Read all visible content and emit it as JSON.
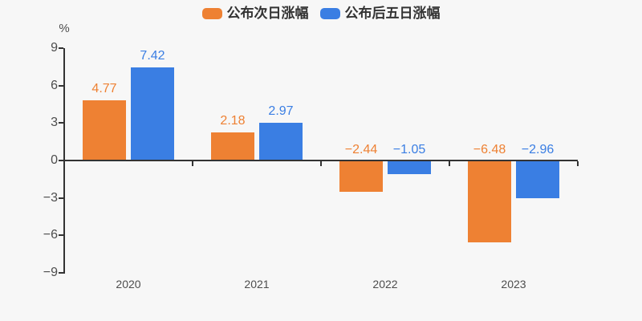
{
  "chart_data": {
    "type": "bar",
    "title": "",
    "xlabel": "",
    "ylabel": "%",
    "categories": [
      "2020",
      "2021",
      "2022",
      "2023"
    ],
    "series": [
      {
        "name": "公布次日涨幅",
        "color": "#ee8133",
        "values": [
          4.77,
          2.18,
          -2.44,
          -6.48
        ]
      },
      {
        "name": "公布后五日涨幅",
        "color": "#3a7ee3",
        "values": [
          7.42,
          2.97,
          -1.05,
          -2.96
        ]
      }
    ],
    "y_ticks": [
      9,
      6,
      3,
      0,
      -3,
      -6,
      -9
    ],
    "ylim": [
      -9,
      9
    ],
    "legend_position": "top",
    "grid": "off",
    "value_labels": "on"
  },
  "colors": {
    "background": "#f7f7f7",
    "axis": "#333333",
    "tick_label": "#4d4d4d",
    "legend_text": "#333333",
    "series_next_day": "#ee8133",
    "series_five_day": "#3a7ee3"
  }
}
